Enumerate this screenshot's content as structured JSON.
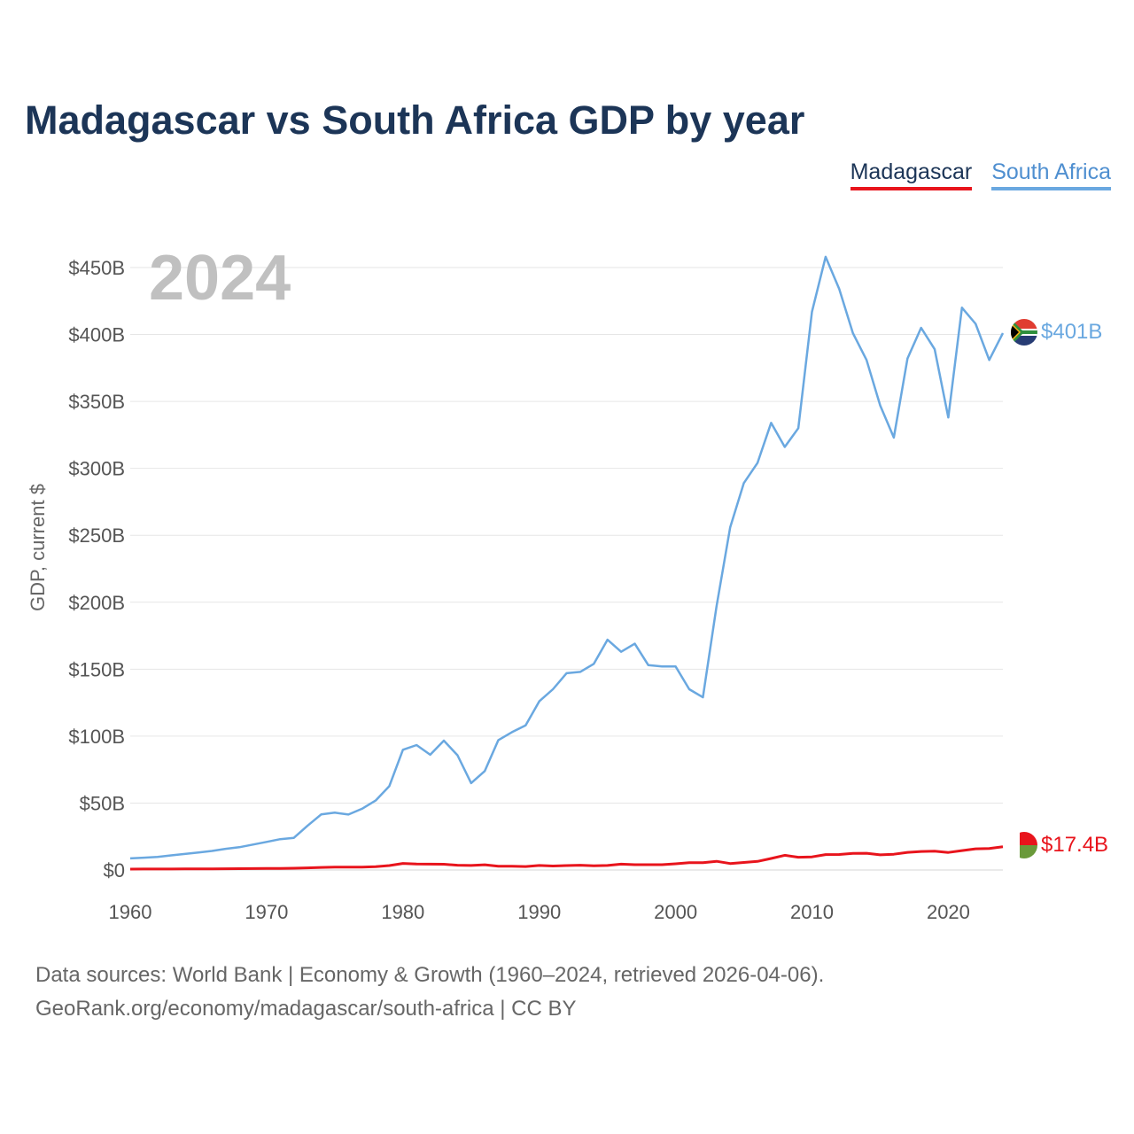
{
  "title": "Madagascar vs South Africa GDP by year",
  "legend": [
    {
      "name": "Madagascar",
      "color": "#e8141c"
    },
    {
      "name": "South Africa",
      "color": "#6aa8e0"
    }
  ],
  "current_year": "2024",
  "source_lines": [
    "Data sources: World Bank | Economy & Growth (1960–2024, retrieved 2026-04-06).",
    "GeoRank.org/economy/madagascar/south-africa | CC BY"
  ],
  "chart_data": {
    "type": "line",
    "title": "Madagascar vs South Africa GDP by year",
    "xlabel": "",
    "ylabel": "GDP, current $",
    "xlim": [
      1960,
      2024
    ],
    "ylim": [
      0,
      450
    ],
    "unit": "billion USD",
    "x_ticks": [
      1960,
      1970,
      1980,
      1990,
      2000,
      2010,
      2020
    ],
    "y_ticks": [
      {
        "value": 0,
        "label": "$0"
      },
      {
        "value": 50,
        "label": "$50B"
      },
      {
        "value": 100,
        "label": "$100B"
      },
      {
        "value": 150,
        "label": "$150B"
      },
      {
        "value": 200,
        "label": "$200B"
      },
      {
        "value": 250,
        "label": "$250B"
      },
      {
        "value": 300,
        "label": "$300B"
      },
      {
        "value": 350,
        "label": "$350B"
      },
      {
        "value": 400,
        "label": "$400B"
      },
      {
        "value": 450,
        "label": "$450B"
      }
    ],
    "grid": true,
    "x": [
      1960,
      1961,
      1962,
      1963,
      1964,
      1965,
      1966,
      1967,
      1968,
      1969,
      1970,
      1971,
      1972,
      1973,
      1974,
      1975,
      1976,
      1977,
      1978,
      1979,
      1980,
      1981,
      1982,
      1983,
      1984,
      1985,
      1986,
      1987,
      1988,
      1989,
      1990,
      1991,
      1992,
      1993,
      1994,
      1995,
      1996,
      1997,
      1998,
      1999,
      2000,
      2001,
      2002,
      2003,
      2004,
      2005,
      2006,
      2007,
      2008,
      2009,
      2010,
      2011,
      2012,
      2013,
      2014,
      2015,
      2016,
      2017,
      2018,
      2019,
      2020,
      2021,
      2022,
      2023,
      2024
    ],
    "series": [
      {
        "name": "Madagascar",
        "color": "#e8141c",
        "end_label": "$17.4B",
        "values": [
          0.67,
          0.7,
          0.73,
          0.76,
          0.8,
          0.84,
          0.87,
          0.92,
          0.99,
          1.06,
          1.1,
          1.2,
          1.3,
          1.6,
          1.9,
          2.2,
          2.1,
          2.2,
          2.5,
          3.3,
          4.9,
          4.5,
          4.4,
          4.3,
          3.6,
          3.4,
          3.9,
          2.8,
          2.8,
          2.6,
          3.4,
          3.0,
          3.3,
          3.6,
          3.2,
          3.4,
          4.4,
          4.0,
          4.0,
          4.0,
          4.6,
          5.4,
          5.4,
          6.5,
          4.8,
          5.6,
          6.4,
          8.6,
          11.0,
          9.5,
          9.8,
          11.5,
          11.6,
          12.4,
          12.5,
          11.3,
          11.8,
          13.2,
          13.8,
          14.1,
          13.1,
          14.5,
          15.8,
          16.1,
          17.4
        ]
      },
      {
        "name": "South Africa",
        "color": "#6aa8e0",
        "end_label": "$401B",
        "values": [
          8.7,
          9.2,
          9.8,
          10.9,
          12.0,
          13.1,
          14.2,
          15.8,
          17.0,
          19.0,
          21.0,
          23.0,
          24.0,
          33.0,
          41.5,
          42.8,
          41.4,
          45.7,
          51.9,
          62.6,
          89.8,
          93.3,
          86.1,
          96.6,
          85.7,
          64.9,
          73.9,
          97.0,
          103.0,
          108.0,
          126.0,
          135.0,
          147.0,
          148.0,
          154.0,
          172.0,
          163.0,
          169.0,
          153.0,
          152.0,
          152.0,
          135.0,
          129.0,
          197.0,
          256.0,
          289.0,
          304.0,
          334.0,
          316.0,
          330.0,
          417.0,
          458.0,
          434.0,
          401.0,
          381.0,
          347.0,
          323.0,
          382.0,
          405.0,
          389.0,
          338.0,
          420.0,
          408.0,
          381.0,
          401.0
        ]
      }
    ]
  }
}
